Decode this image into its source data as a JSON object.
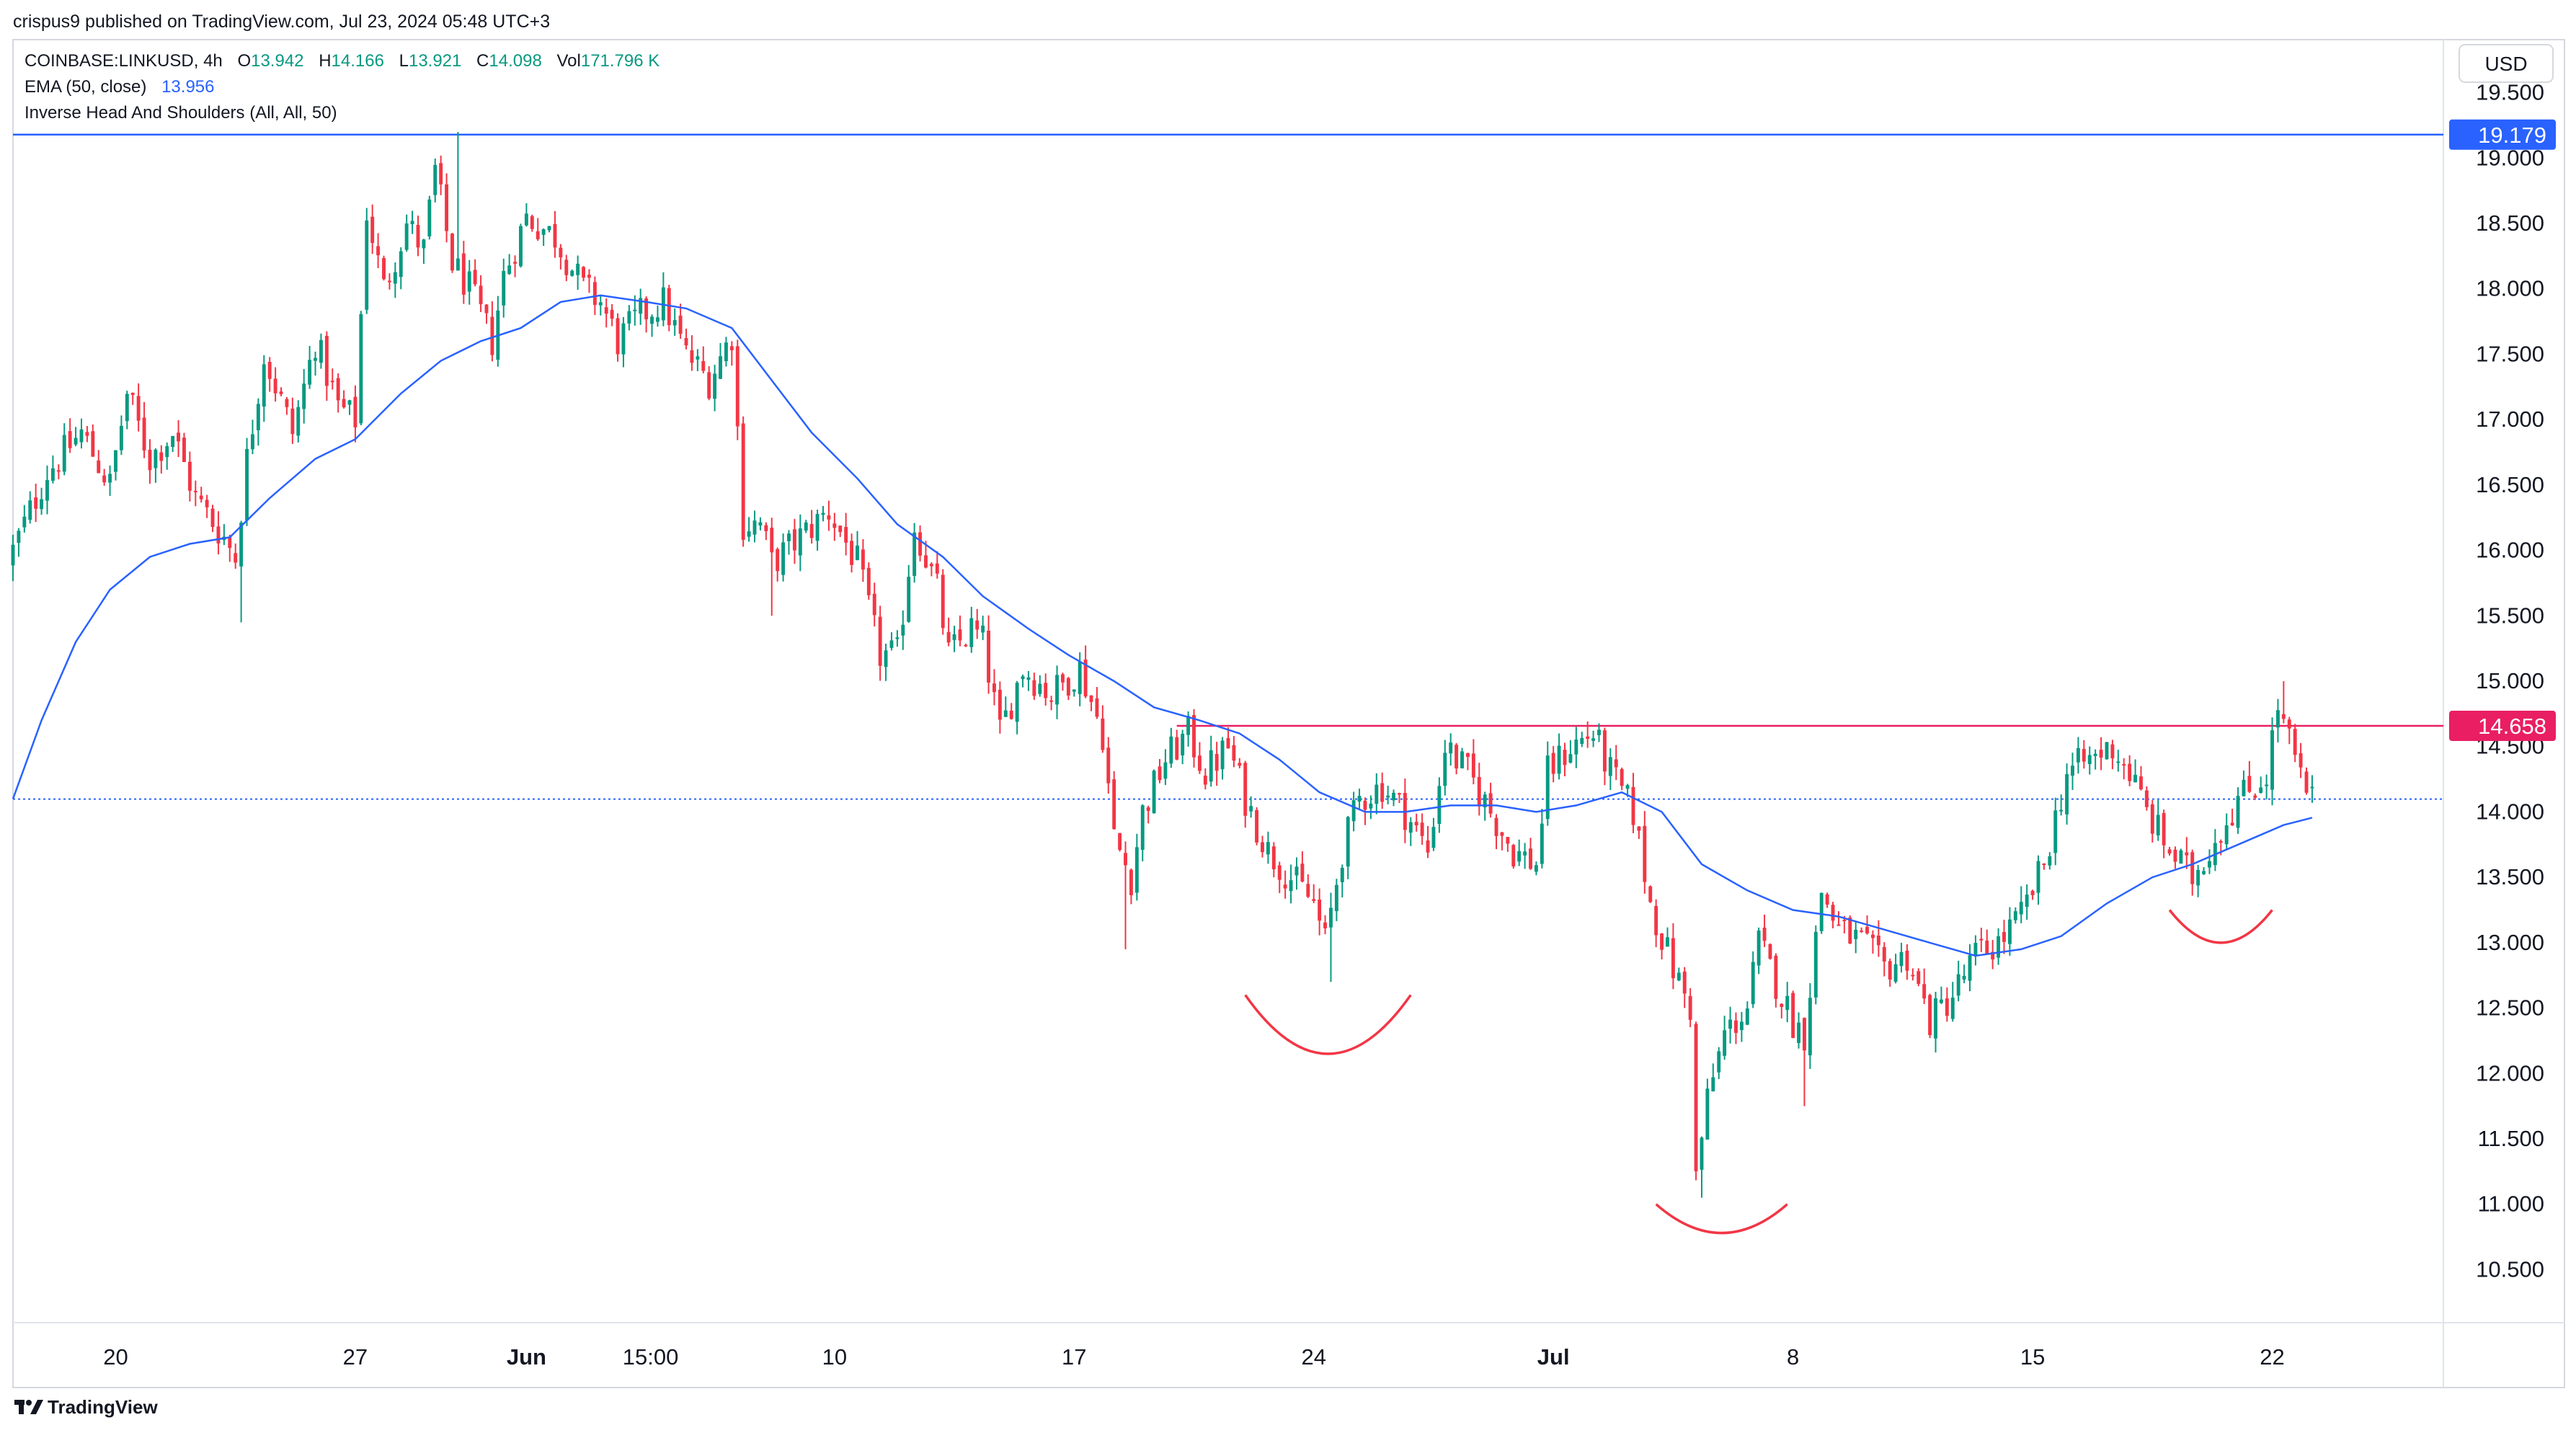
{
  "header": {
    "publish_line": "crispus9 published on TradingView.com, Jul 23, 2024 05:48 UTC+3"
  },
  "legend": {
    "symbol": "COINBASE:LINKUSD, 4h",
    "o_label": "O",
    "o_value": "13.942",
    "h_label": "H",
    "h_value": "14.166",
    "l_label": "L",
    "l_value": "13.921",
    "c_label": "C",
    "c_value": "14.098",
    "vol_label": "Vol",
    "vol_value": "171.796 K",
    "ema_label": "EMA (50, close)",
    "ema_value": "13.956",
    "pattern_label": "Inverse Head And Shoulders (All, All, 50)"
  },
  "currency_button": "USD",
  "footer": {
    "brand": "TradingView"
  },
  "colors": {
    "up": "#089981",
    "down": "#F23645",
    "ema": "#2962FF",
    "resistance": "#2962FF",
    "neckline": "#E91E63",
    "pattern": "#F23645",
    "text": "#131722",
    "axis_text": "#131722"
  },
  "chart_data": {
    "type": "candlestick",
    "symbol": "COINBASE:LINKUSD",
    "timeframe": "4h",
    "ylim": [
      10.1,
      19.9
    ],
    "y_ticks": [
      "19.500",
      "19.000",
      "18.500",
      "18.000",
      "17.500",
      "17.000",
      "16.500",
      "16.000",
      "15.500",
      "15.000",
      "14.500",
      "14.000",
      "13.500",
      "13.000",
      "12.500",
      "12.000",
      "11.500",
      "11.000",
      "10.500"
    ],
    "x_ticks": [
      {
        "label": "20",
        "date": "2024-05-20"
      },
      {
        "label": "27",
        "date": "2024-05-27"
      },
      {
        "label": "Jun",
        "date": "2024-06-01"
      },
      {
        "label": "15:00",
        "date": "2024-06-04T15:00"
      },
      {
        "label": "10",
        "date": "2024-06-10"
      },
      {
        "label": "17",
        "date": "2024-06-17"
      },
      {
        "label": "24",
        "date": "2024-06-24"
      },
      {
        "label": "Jul",
        "date": "2024-07-01"
      },
      {
        "label": "8",
        "date": "2024-07-08"
      },
      {
        "label": "15",
        "date": "2024-07-15"
      },
      {
        "label": "22",
        "date": "2024-07-22"
      }
    ],
    "horizontal_lines": [
      {
        "name": "resistance",
        "value": 19.179,
        "label": "19.179"
      },
      {
        "name": "neckline",
        "value": 14.658,
        "label": "14.658"
      },
      {
        "name": "last-price",
        "value": 14.098
      }
    ],
    "price_path": [
      [
        "2024-05-17T00:00",
        15.9
      ],
      [
        "2024-05-17T12:00",
        16.2
      ],
      [
        "2024-05-18T04:00",
        16.6
      ],
      [
        "2024-05-19T04:00",
        16.9
      ],
      [
        "2024-05-20T00:00",
        16.5
      ],
      [
        "2024-05-20T12:00",
        17.2
      ],
      [
        "2024-05-21T04:00",
        16.7
      ],
      [
        "2024-05-21T20:00",
        16.9
      ],
      [
        "2024-05-22T12:00",
        16.4
      ],
      [
        "2024-05-23T08:00",
        16.1
      ],
      [
        "2024-05-23T16:00",
        15.95
      ],
      [
        "2024-05-24T00:00",
        16.7
      ],
      [
        "2024-05-24T12:00",
        17.5
      ],
      [
        "2024-05-25T08:00",
        16.9
      ],
      [
        "2024-05-26T00:00",
        17.6
      ],
      [
        "2024-05-26T16:00",
        17.1
      ],
      [
        "2024-05-27T04:00",
        17.0
      ],
      [
        "2024-05-27T12:00",
        18.6
      ],
      [
        "2024-05-28T00:00",
        18.0
      ],
      [
        "2024-05-28T16:00",
        18.5
      ],
      [
        "2024-05-29T04:00",
        18.3
      ],
      [
        "2024-05-29T12:00",
        18.9
      ],
      [
        "2024-05-30T00:00",
        18.2
      ],
      [
        "2024-05-30T12:00",
        18.0
      ],
      [
        "2024-05-31T04:00",
        17.6
      ],
      [
        "2024-05-31T12:00",
        18.1
      ],
      [
        "2024-06-01T04:00",
        18.55
      ],
      [
        "2024-06-02T00:00",
        18.4
      ],
      [
        "2024-06-02T20:00",
        18.0
      ],
      [
        "2024-06-03T08:00",
        17.9
      ],
      [
        "2024-06-03T20:00",
        17.6
      ],
      [
        "2024-06-04T12:00",
        17.8
      ],
      [
        "2024-06-05T04:00",
        17.9
      ],
      [
        "2024-06-05T20:00",
        17.5
      ],
      [
        "2024-06-06T12:00",
        17.3
      ],
      [
        "2024-06-07T04:00",
        17.65
      ],
      [
        "2024-06-07T12:00",
        16.2
      ],
      [
        "2024-06-08T00:00",
        16.2
      ],
      [
        "2024-06-08T08:00",
        15.9
      ],
      [
        "2024-06-09T04:00",
        16.1
      ],
      [
        "2024-06-10T00:00",
        16.3
      ],
      [
        "2024-06-10T20:00",
        15.9
      ],
      [
        "2024-06-11T12:00",
        15.2
      ],
      [
        "2024-06-12T00:00",
        15.2
      ],
      [
        "2024-06-12T12:00",
        16.2
      ],
      [
        "2024-06-13T04:00",
        15.7
      ],
      [
        "2024-06-13T12:00",
        15.2
      ],
      [
        "2024-06-14T04:00",
        15.4
      ],
      [
        "2024-06-14T12:00",
        15.3
      ],
      [
        "2024-06-15T00:00",
        14.6
      ],
      [
        "2024-06-15T16:00",
        15.1
      ],
      [
        "2024-06-16T12:00",
        14.9
      ],
      [
        "2024-06-17T08:00",
        15.1
      ],
      [
        "2024-06-18T00:00",
        14.6
      ],
      [
        "2024-06-18T08:00",
        13.8
      ],
      [
        "2024-06-18T20:00",
        13.5
      ],
      [
        "2024-06-19T04:00",
        14.0
      ],
      [
        "2024-06-19T20:00",
        14.4
      ],
      [
        "2024-06-20T12:00",
        14.6
      ],
      [
        "2024-06-21T00:00",
        14.3
      ],
      [
        "2024-06-21T16:00",
        14.5
      ],
      [
        "2024-06-22T04:00",
        14.1
      ],
      [
        "2024-06-22T20:00",
        13.7
      ],
      [
        "2024-06-23T12:00",
        13.5
      ],
      [
        "2024-06-24T04:00",
        13.3
      ],
      [
        "2024-06-24T12:00",
        13.0
      ],
      [
        "2024-06-25T00:00",
        13.7
      ],
      [
        "2024-06-25T12:00",
        14.1
      ],
      [
        "2024-06-26T04:00",
        14.2
      ],
      [
        "2024-06-26T20:00",
        14.0
      ],
      [
        "2024-06-27T12:00",
        13.7
      ],
      [
        "2024-06-28T00:00",
        14.5
      ],
      [
        "2024-06-28T16:00",
        14.3
      ],
      [
        "2024-06-29T08:00",
        14.0
      ],
      [
        "2024-06-30T00:00",
        13.7
      ],
      [
        "2024-06-30T16:00",
        13.6
      ],
      [
        "2024-07-01T00:00",
        14.3
      ],
      [
        "2024-07-01T16:00",
        14.5
      ],
      [
        "2024-07-02T08:00",
        14.6
      ],
      [
        "2024-07-02T20:00",
        14.3
      ],
      [
        "2024-07-03T12:00",
        14.0
      ],
      [
        "2024-07-04T00:00",
        13.3
      ],
      [
        "2024-07-04T16:00",
        12.8
      ],
      [
        "2024-07-05T04:00",
        12.5
      ],
      [
        "2024-07-05T08:00",
        11.2
      ],
      [
        "2024-07-05T16:00",
        11.8
      ],
      [
        "2024-07-06T04:00",
        12.3
      ],
      [
        "2024-07-06T20:00",
        12.5
      ],
      [
        "2024-07-07T04:00",
        13.0
      ],
      [
        "2024-07-07T16:00",
        12.7
      ],
      [
        "2024-07-08T04:00",
        12.4
      ],
      [
        "2024-07-08T12:00",
        12.3
      ],
      [
        "2024-07-09T00:00",
        13.4
      ],
      [
        "2024-07-09T12:00",
        13.1
      ],
      [
        "2024-07-10T04:00",
        13.0
      ],
      [
        "2024-07-10T20:00",
        12.8
      ],
      [
        "2024-07-11T12:00",
        12.9
      ],
      [
        "2024-07-12T04:00",
        12.4
      ],
      [
        "2024-07-12T20:00",
        12.6
      ],
      [
        "2024-07-13T12:00",
        12.9
      ],
      [
        "2024-07-14T04:00",
        13.0
      ],
      [
        "2024-07-14T20:00",
        13.2
      ],
      [
        "2024-07-15T12:00",
        13.6
      ],
      [
        "2024-07-16T04:00",
        14.3
      ],
      [
        "2024-07-16T20:00",
        14.4
      ],
      [
        "2024-07-17T12:00",
        14.5
      ],
      [
        "2024-07-18T00:00",
        14.3
      ],
      [
        "2024-07-18T12:00",
        14.0
      ],
      [
        "2024-07-19T04:00",
        13.7
      ],
      [
        "2024-07-19T20:00",
        13.5
      ],
      [
        "2024-07-20T12:00",
        13.8
      ],
      [
        "2024-07-21T04:00",
        14.1
      ],
      [
        "2024-07-21T16:00",
        14.2
      ],
      [
        "2024-07-22T00:00",
        14.3
      ],
      [
        "2024-07-22T08:00",
        14.8
      ],
      [
        "2024-07-22T20:00",
        14.4
      ],
      [
        "2024-07-23T04:00",
        14.1
      ]
    ],
    "price_extremes": [
      {
        "date": "2024-05-30T00:00",
        "high": 19.2
      },
      {
        "date": "2024-07-05T08:00",
        "low": 11.05
      },
      {
        "date": "2024-06-24T12:00",
        "low": 12.7
      },
      {
        "date": "2024-06-18T12:00",
        "low": 12.95
      },
      {
        "date": "2024-07-22T08:00",
        "high": 15.0
      },
      {
        "date": "2024-05-23T16:00",
        "low": 15.45
      },
      {
        "date": "2024-07-08T08:00",
        "low": 11.75
      },
      {
        "date": "2024-06-08T04:00",
        "low": 15.5
      }
    ],
    "ema": {
      "name": "EMA (50, close)",
      "points": [
        [
          "2024-05-17T00:00",
          14.1
        ],
        [
          "2024-05-17T20:00",
          14.7
        ],
        [
          "2024-05-18T20:00",
          15.3
        ],
        [
          "2024-05-19T20:00",
          15.7
        ],
        [
          "2024-05-21T00:00",
          15.95
        ],
        [
          "2024-05-22T04:00",
          16.05
        ],
        [
          "2024-05-23T08:00",
          16.1
        ],
        [
          "2024-05-24T12:00",
          16.4
        ],
        [
          "2024-05-25T20:00",
          16.7
        ],
        [
          "2024-05-27T00:00",
          16.85
        ],
        [
          "2024-05-28T08:00",
          17.2
        ],
        [
          "2024-05-29T12:00",
          17.45
        ],
        [
          "2024-05-30T16:00",
          17.6
        ],
        [
          "2024-05-31T20:00",
          17.7
        ],
        [
          "2024-06-02T00:00",
          17.9
        ],
        [
          "2024-06-03T04:00",
          17.95
        ],
        [
          "2024-06-04T12:00",
          17.9
        ],
        [
          "2024-06-05T16:00",
          17.85
        ],
        [
          "2024-06-07T00:00",
          17.7
        ],
        [
          "2024-06-08T04:00",
          17.3
        ],
        [
          "2024-06-09T08:00",
          16.9
        ],
        [
          "2024-06-10T16:00",
          16.55
        ],
        [
          "2024-06-11T20:00",
          16.2
        ],
        [
          "2024-06-13T04:00",
          15.95
        ],
        [
          "2024-06-14T08:00",
          15.65
        ],
        [
          "2024-06-15T16:00",
          15.4
        ],
        [
          "2024-06-16T20:00",
          15.2
        ],
        [
          "2024-06-18T04:00",
          15.0
        ],
        [
          "2024-06-19T08:00",
          14.8
        ],
        [
          "2024-06-20T16:00",
          14.7
        ],
        [
          "2024-06-21T20:00",
          14.6
        ],
        [
          "2024-06-23T00:00",
          14.4
        ],
        [
          "2024-06-24T04:00",
          14.15
        ],
        [
          "2024-06-25T12:00",
          14.0
        ],
        [
          "2024-06-26T16:00",
          14.0
        ],
        [
          "2024-06-28T00:00",
          14.05
        ],
        [
          "2024-06-29T08:00",
          14.05
        ],
        [
          "2024-06-30T12:00",
          14.0
        ],
        [
          "2024-07-01T16:00",
          14.05
        ],
        [
          "2024-07-03T00:00",
          14.15
        ],
        [
          "2024-07-04T04:00",
          14.0
        ],
        [
          "2024-07-05T08:00",
          13.6
        ],
        [
          "2024-07-06T16:00",
          13.4
        ],
        [
          "2024-07-08T00:00",
          13.25
        ],
        [
          "2024-07-09T08:00",
          13.2
        ],
        [
          "2024-07-10T16:00",
          13.1
        ],
        [
          "2024-07-12T00:00",
          13.0
        ],
        [
          "2024-07-13T08:00",
          12.9
        ],
        [
          "2024-07-14T16:00",
          12.95
        ],
        [
          "2024-07-15T20:00",
          13.05
        ],
        [
          "2024-07-17T04:00",
          13.3
        ],
        [
          "2024-07-18T12:00",
          13.5
        ],
        [
          "2024-07-19T16:00",
          13.6
        ],
        [
          "2024-07-21T00:00",
          13.75
        ],
        [
          "2024-07-22T08:00",
          13.9
        ],
        [
          "2024-07-23T04:00",
          13.956
        ]
      ]
    },
    "pattern": {
      "name": "Inverse Head And Shoulders (All, All, 50)",
      "arcs": [
        {
          "name": "left-shoulder",
          "start": "2024-06-22T00:00",
          "end": "2024-06-26T20:00",
          "low": 12.15,
          "edge": 12.6
        },
        {
          "name": "head",
          "start": "2024-07-04T00:00",
          "end": "2024-07-07T20:00",
          "low": 10.78,
          "edge": 11.0
        },
        {
          "name": "right-shoulder",
          "start": "2024-07-19T00:00",
          "end": "2024-07-22T00:00",
          "low": 13.0,
          "edge": 13.25
        }
      ]
    }
  }
}
